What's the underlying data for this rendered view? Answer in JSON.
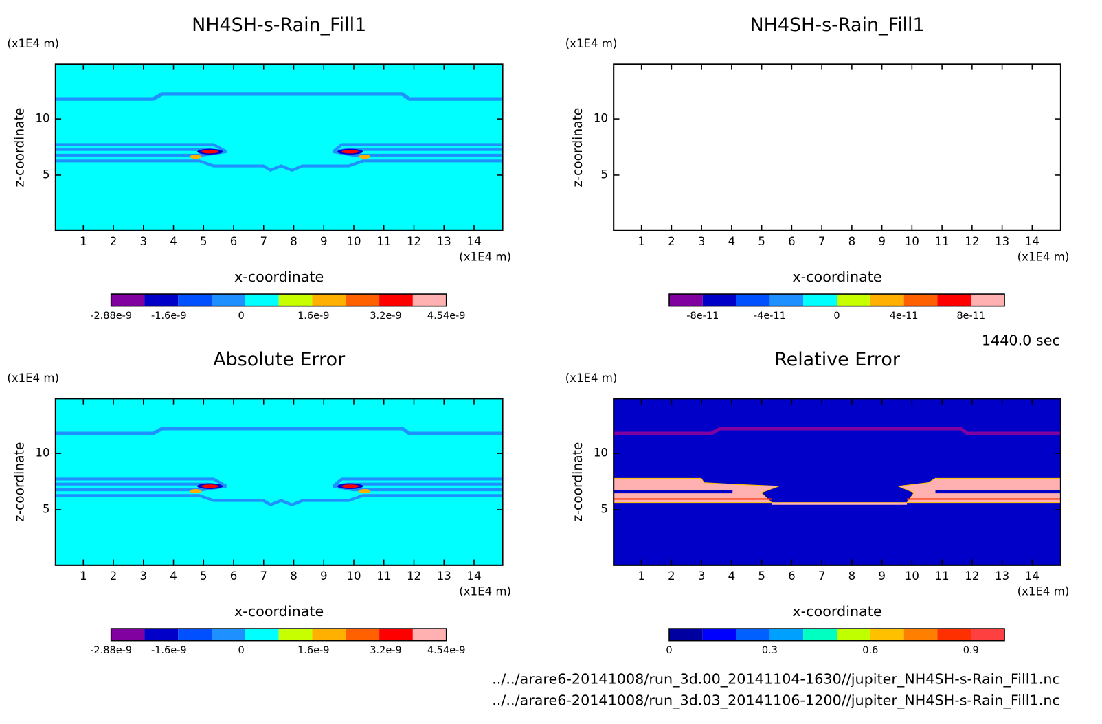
{
  "chart_data": [
    {
      "type": "contour",
      "title": "NH4SH-s-Rain_Fill1",
      "x_label": "x-coordinate",
      "y_label": "z-coordinate",
      "x_unit": "(x1E4 m)",
      "y_unit": "(x1E4 m)",
      "xlim": [
        0.075,
        14.95
      ],
      "ylim": [
        0.06,
        14.87
      ],
      "xticks": [
        1,
        2,
        3,
        4,
        5,
        6,
        7,
        8,
        9,
        10,
        11,
        12,
        13,
        14
      ],
      "yticks": [
        5,
        10
      ],
      "background": "#00ffff",
      "colorbar": {
        "lim": [
          -2.88e-09,
          4.54e-09
        ],
        "ticks": [
          -2.88e-09,
          -1.6e-09,
          0,
          1.6e-09,
          3.2e-09,
          4.54e-09
        ],
        "colors": [
          "#8000a0",
          "#0000c8",
          "#0050ff",
          "#1e90ff",
          "#00ffff",
          "#c8ff00",
          "#ffb000",
          "#ff6000",
          "#ff0000",
          "#ffb0b0"
        ]
      }
    },
    {
      "type": "contour",
      "title": "NH4SH-s-Rain_Fill1",
      "x_label": "x-coordinate",
      "y_label": "z-coordinate",
      "x_unit": "(x1E4 m)",
      "y_unit": "(x1E4 m)",
      "xlim": [
        0.075,
        14.95
      ],
      "ylim": [
        0.06,
        14.87
      ],
      "xticks": [
        1,
        2,
        3,
        4,
        5,
        6,
        7,
        8,
        9,
        10,
        11,
        12,
        13,
        14
      ],
      "yticks": [
        5,
        10
      ],
      "background": "#ffffff",
      "colorbar": {
        "lim": [
          -1e-10,
          1e-10
        ],
        "ticks": [
          -8e-11,
          -4e-11,
          0,
          4e-11,
          8e-11
        ],
        "colors": [
          "#8000a0",
          "#0000c8",
          "#0050ff",
          "#1e90ff",
          "#00ffff",
          "#c8ff00",
          "#ffb000",
          "#ff6000",
          "#ff0000",
          "#ffb0b0"
        ]
      }
    },
    {
      "type": "contour",
      "title": "Absolute Error",
      "x_label": "x-coordinate",
      "y_label": "z-coordinate",
      "x_unit": "(x1E4 m)",
      "y_unit": "(x1E4 m)",
      "xlim": [
        0.075,
        14.95
      ],
      "ylim": [
        0.06,
        14.87
      ],
      "xticks": [
        1,
        2,
        3,
        4,
        5,
        6,
        7,
        8,
        9,
        10,
        11,
        12,
        13,
        14
      ],
      "yticks": [
        5,
        10
      ],
      "background": "#00ffff",
      "colorbar": {
        "lim": [
          -2.88e-09,
          4.54e-09
        ],
        "ticks": [
          -2.88e-09,
          -1.6e-09,
          0,
          1.6e-09,
          3.2e-09,
          4.54e-09
        ],
        "colors": [
          "#8000a0",
          "#0000c8",
          "#0050ff",
          "#1e90ff",
          "#00ffff",
          "#c8ff00",
          "#ffb000",
          "#ff6000",
          "#ff0000",
          "#ffb0b0"
        ]
      }
    },
    {
      "type": "contour",
      "title": "Relative Error",
      "x_label": "x-coordinate",
      "y_label": "z-coordinate",
      "x_unit": "(x1E4 m)",
      "y_unit": "(x1E4 m)",
      "xlim": [
        0.075,
        14.95
      ],
      "ylim": [
        0.06,
        14.87
      ],
      "xticks": [
        1,
        2,
        3,
        4,
        5,
        6,
        7,
        8,
        9,
        10,
        11,
        12,
        13,
        14
      ],
      "yticks": [
        5,
        10
      ],
      "background": "#0000c8",
      "colorbar": {
        "lim": [
          0,
          1
        ],
        "ticks": [
          0,
          0.3,
          0.6,
          0.9
        ],
        "colors": [
          "#0000a0",
          "#0000ff",
          "#0060ff",
          "#00a0ff",
          "#00ffc0",
          "#c0ff00",
          "#ffc000",
          "#ff8000",
          "#ff3000",
          "#ff4040"
        ]
      }
    }
  ],
  "time_label": "1440.0 sec",
  "files": [
    "../../arare6-20141008/run_3d.00_20141104-1630//jupiter_NH4SH-s-Rain_Fill1.nc",
    "../../arare6-20141008/run_3d.03_20141106-1200//jupiter_NH4SH-s-Rain_Fill1.nc"
  ]
}
